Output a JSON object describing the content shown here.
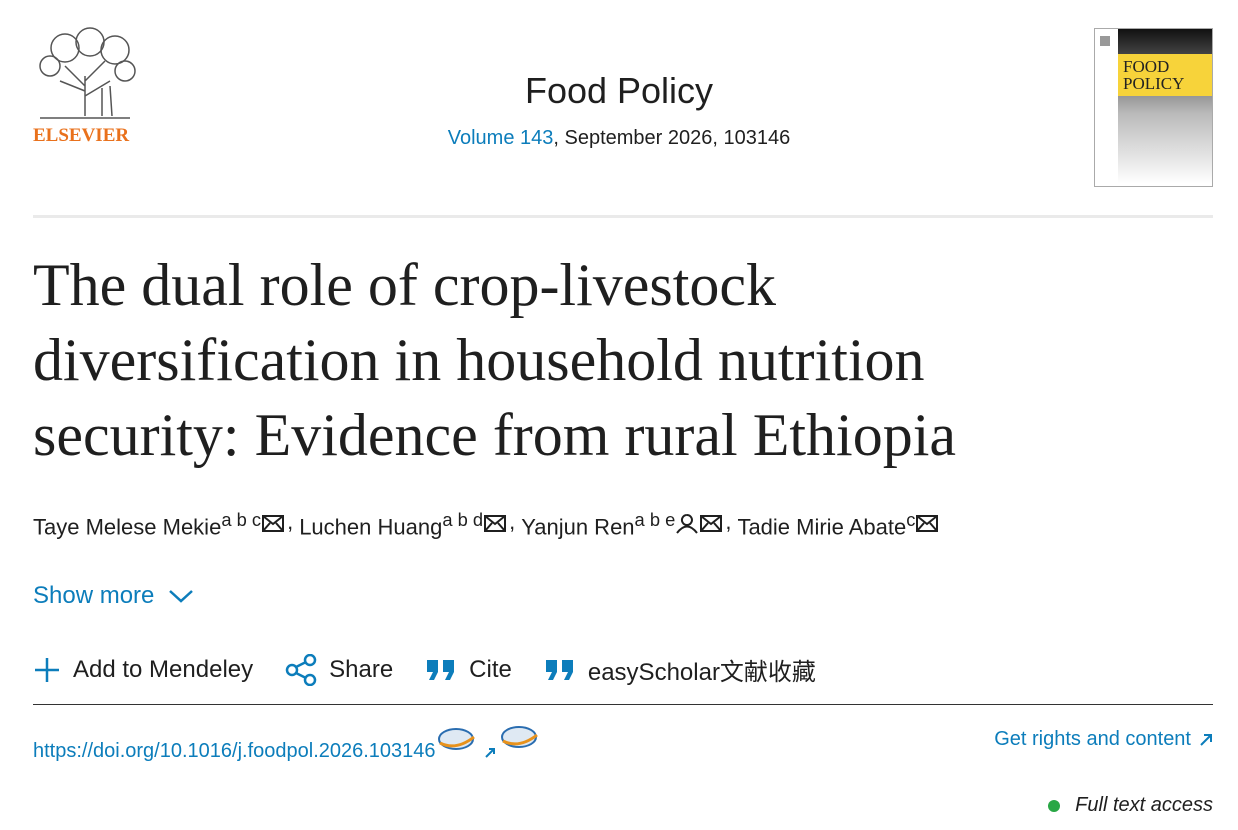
{
  "header": {
    "publisher": "ELSEVIER",
    "journal": "Food Policy",
    "volume": "Volume 143",
    "issue_info": ", September 2026, 103146",
    "cover_title": [
      "FOOD",
      "POLICY"
    ]
  },
  "article": {
    "title": "The dual role of crop-livestock diversification in household nutrition security: Evidence from rural Ethiopia",
    "separator": ",",
    "authors": [
      {
        "name": "Taye Melese Mekie",
        "affiliations": "a b c"
      },
      {
        "name": "Luchen Huang",
        "affiliations": "a b d"
      },
      {
        "name": "Yanjun Ren",
        "affiliations": "a b e"
      },
      {
        "name": "Tadie Mirie Abate",
        "affiliations": "c"
      }
    ],
    "show_more": "Show more",
    "actions": [
      "Add to Mendeley",
      "Share",
      "Cite",
      "easyScholar文献收藏"
    ],
    "doi": "https://doi.org/10.1016/j.foodpol.2026.103146",
    "rights": "Get rights and content",
    "access": "Full text access"
  }
}
